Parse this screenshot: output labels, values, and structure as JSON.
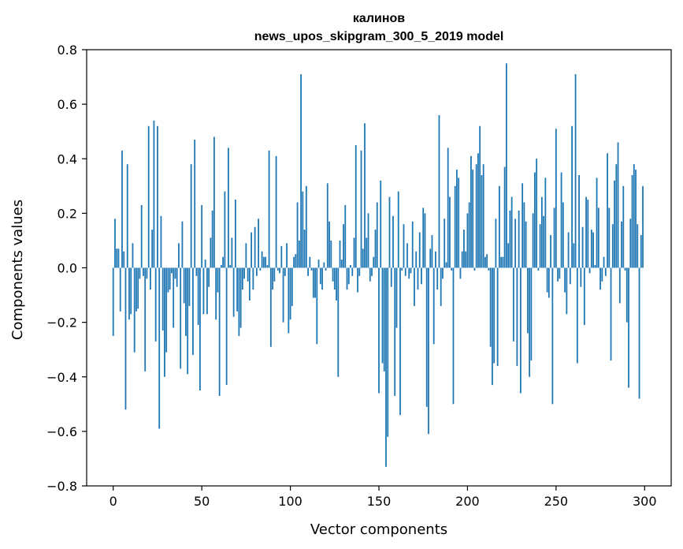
{
  "chart_data": {
    "type": "bar",
    "title": "калинов",
    "subtitle": "news_upos_skipgram_300_5_2019 model",
    "xlabel": "Vector components",
    "ylabel": "Components values",
    "xlim": [
      -15,
      315
    ],
    "ylim": [
      -0.8,
      0.8
    ],
    "x_ticks": [
      0,
      50,
      100,
      150,
      200,
      250,
      300
    ],
    "x_tick_labels": [
      "0",
      "50",
      "100",
      "150",
      "200",
      "250",
      "300"
    ],
    "y_ticks": [
      -0.8,
      -0.6,
      -0.4,
      -0.2,
      0.0,
      0.2,
      0.4,
      0.6,
      0.8
    ],
    "y_tick_labels": [
      "−0.8",
      "−0.6",
      "−0.4",
      "−0.2",
      "0.0",
      "0.2",
      "0.4",
      "0.6",
      "0.8"
    ],
    "bar_color": "#1f77b4",
    "grid": false,
    "x": "0..299 (vector component index)",
    "values": [
      -0.25,
      0.18,
      0.07,
      0.07,
      -0.16,
      0.43,
      0.06,
      -0.52,
      0.38,
      -0.19,
      -0.17,
      0.09,
      -0.31,
      -0.16,
      -0.15,
      -0.04,
      0.23,
      -0.03,
      -0.38,
      -0.04,
      0.52,
      -0.08,
      0.14,
      0.54,
      -0.27,
      0.52,
      -0.59,
      0.19,
      -0.23,
      -0.4,
      -0.31,
      -0.09,
      -0.08,
      -0.02,
      -0.22,
      -0.04,
      -0.07,
      0.09,
      -0.37,
      0.17,
      -0.13,
      -0.25,
      -0.39,
      -0.14,
      0.38,
      -0.32,
      0.47,
      -0.03,
      -0.21,
      -0.45,
      0.23,
      -0.17,
      0.03,
      -0.17,
      -0.07,
      0.11,
      0.21,
      0.48,
      -0.19,
      -0.09,
      -0.47,
      0.01,
      0.04,
      0.28,
      -0.43,
      0.44,
      0.01,
      0.11,
      -0.18,
      0.25,
      -0.16,
      -0.25,
      -0.22,
      -0.08,
      -0.04,
      0.09,
      -0.05,
      -0.12,
      0.13,
      -0.08,
      0.15,
      -0.03,
      0.18,
      -0.01,
      0.06,
      0.04,
      0.04,
      0.01,
      0.43,
      -0.29,
      -0.08,
      -0.05,
      0.41,
      -0.01,
      -0.02,
      0.08,
      -0.2,
      -0.03,
      0.09,
      -0.24,
      -0.19,
      -0.14,
      0.04,
      0.05,
      0.24,
      0.1,
      0.71,
      0.28,
      0.14,
      0.3,
      -0.03,
      0.04,
      -0.01,
      -0.11,
      -0.11,
      -0.28,
      0.03,
      -0.06,
      -0.08,
      0.02,
      -0.01,
      0.31,
      0.17,
      0.1,
      -0.05,
      -0.08,
      -0.12,
      -0.4,
      0.1,
      0.03,
      0.16,
      0.23,
      -0.08,
      -0.06,
      0.01,
      -0.03,
      0.11,
      0.45,
      -0.09,
      -0.03,
      0.43,
      0.07,
      0.53,
      0.11,
      0.2,
      -0.05,
      -0.03,
      0.04,
      0.14,
      0.24,
      -0.46,
      0.32,
      -0.35,
      -0.38,
      -0.73,
      -0.62,
      0.26,
      -0.07,
      0.19,
      -0.47,
      -0.22,
      0.28,
      -0.54,
      -0.01,
      0.16,
      -0.03,
      0.09,
      -0.04,
      -0.02,
      0.17,
      -0.14,
      0.06,
      -0.08,
      0.13,
      -0.06,
      0.22,
      0.2,
      -0.51,
      -0.61,
      0.07,
      0.12,
      -0.28,
      0.06,
      -0.08,
      0.56,
      -0.14,
      -0.04,
      0.18,
      0.02,
      0.44,
      0.26,
      -0.01,
      -0.5,
      0.3,
      0.36,
      0.33,
      -0.04,
      0.06,
      0.14,
      0.06,
      0.2,
      0.24,
      0.41,
      0.36,
      -0.01,
      0.38,
      0.42,
      0.52,
      0.34,
      0.38,
      0.04,
      0.05,
      -0.01,
      -0.29,
      -0.43,
      -0.35,
      0.18,
      -0.36,
      0.3,
      0.04,
      0.04,
      0.37,
      0.75,
      0.09,
      0.21,
      0.26,
      -0.27,
      0.18,
      -0.36,
      0.21,
      -0.46,
      0.31,
      0.24,
      0.17,
      -0.24,
      -0.4,
      -0.34,
      0.2,
      0.35,
      0.4,
      -0.01,
      0.16,
      0.26,
      0.19,
      0.33,
      -0.09,
      -0.11,
      0.12,
      -0.5,
      0.22,
      0.51,
      -0.05,
      -0.04,
      0.35,
      0.24,
      -0.09,
      -0.17,
      0.13,
      -0.06,
      0.52,
      0.09,
      0.71,
      -0.35,
      0.34,
      -0.07,
      0.15,
      -0.21,
      0.26,
      0.25,
      -0.02,
      0.14,
      0.13,
      0.01,
      0.33,
      0.22,
      -0.08,
      -0.05,
      0.04,
      -0.03,
      0.42,
      0.22,
      -0.34,
      0.16,
      0.32,
      0.38,
      0.46,
      -0.13,
      0.17,
      0.3,
      -0.01,
      -0.2,
      -0.44,
      0.18,
      0.34,
      0.38,
      0.36,
      0.16,
      -0.48,
      0.12,
      0.3
    ]
  }
}
